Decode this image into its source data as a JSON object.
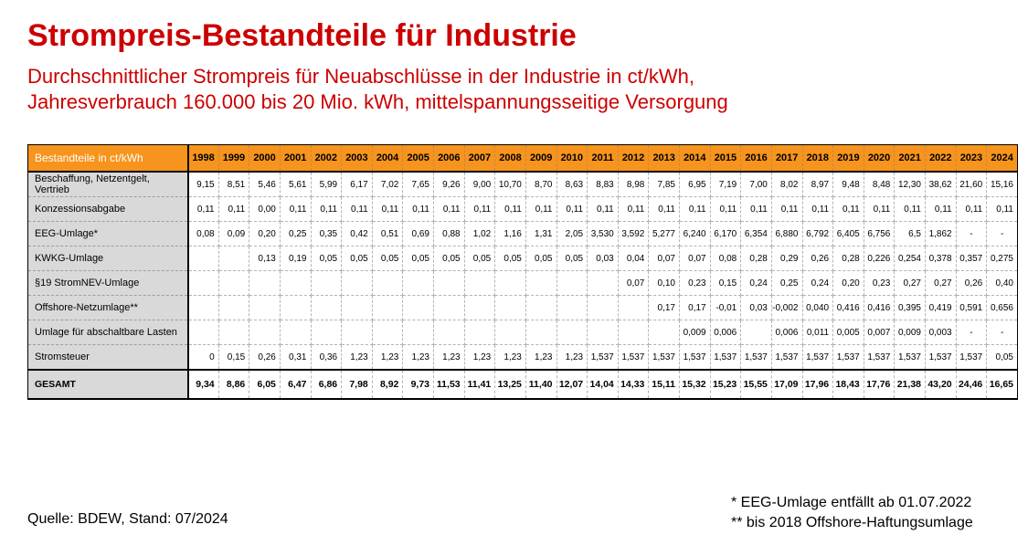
{
  "title": "Strompreis-Bestandteile für Industrie",
  "subtitle": {
    "line1": "Durchschnittlicher Strompreis für Neuabschlüsse in der Industrie in ct/kWh,",
    "line2": "Jahresverbrauch 160.000 bis 20 Mio. kWh, mittelspannungsseitige Versorgung"
  },
  "colors": {
    "accent_red": "#CC0000",
    "header_orange": "#F7941D",
    "label_gray": "#D9D9D9"
  },
  "chart_data": {
    "type": "table",
    "unit": "ct/kWh",
    "header_label": "Bestandteile in ct/kWh",
    "years": [
      "1998",
      "1999",
      "2000",
      "2001",
      "2002",
      "2003",
      "2004",
      "2005",
      "2006",
      "2007",
      "2008",
      "2009",
      "2010",
      "2011",
      "2012",
      "2013",
      "2014",
      "2015",
      "2016",
      "2017",
      "2018",
      "2019",
      "2020",
      "2021",
      "2022",
      "2023",
      "2024"
    ],
    "rows": [
      {
        "label": "Beschaffung, Netzentgelt, Vertrieb",
        "bold": false,
        "values": [
          "9,15",
          "8,51",
          "5,46",
          "5,61",
          "5,99",
          "6,17",
          "7,02",
          "7,65",
          "9,26",
          "9,00",
          "10,70",
          "8,70",
          "8,63",
          "8,83",
          "8,98",
          "7,85",
          "6,95",
          "7,19",
          "7,00",
          "8,02",
          "8,97",
          "9,48",
          "8,48",
          "12,30",
          "38,62",
          "21,60",
          "15,16"
        ]
      },
      {
        "label": "Konzessionsabgabe",
        "bold": false,
        "values": [
          "0,11",
          "0,11",
          "0,00",
          "0,11",
          "0,11",
          "0,11",
          "0,11",
          "0,11",
          "0,11",
          "0,11",
          "0,11",
          "0,11",
          "0,11",
          "0,11",
          "0,11",
          "0,11",
          "0,11",
          "0,11",
          "0,11",
          "0,11",
          "0,11",
          "0,11",
          "0,11",
          "0,11",
          "0,11",
          "0,11",
          "0,11"
        ]
      },
      {
        "label": "EEG-Umlage*",
        "bold": false,
        "values": [
          "0,08",
          "0,09",
          "0,20",
          "0,25",
          "0,35",
          "0,42",
          "0,51",
          "0,69",
          "0,88",
          "1,02",
          "1,16",
          "1,31",
          "2,05",
          "3,530",
          "3,592",
          "5,277",
          "6,240",
          "6,170",
          "6,354",
          "6,880",
          "6,792",
          "6,405",
          "6,756",
          "6,5",
          "1,862",
          "-",
          "-"
        ]
      },
      {
        "label": "KWKG-Umlage",
        "bold": false,
        "values": [
          "",
          "",
          "0,13",
          "0,19",
          "0,05",
          "0,05",
          "0,05",
          "0,05",
          "0,05",
          "0,05",
          "0,05",
          "0,05",
          "0,05",
          "0,03",
          "0,04",
          "0,07",
          "0,07",
          "0,08",
          "0,28",
          "0,29",
          "0,26",
          "0,28",
          "0,226",
          "0,254",
          "0,378",
          "0,357",
          "0,275"
        ]
      },
      {
        "label": "§19 StromNEV-Umlage",
        "bold": false,
        "values": [
          "",
          "",
          "",
          "",
          "",
          "",
          "",
          "",
          "",
          "",
          "",
          "",
          "",
          "",
          "0,07",
          "0,10",
          "0,23",
          "0,15",
          "0,24",
          "0,25",
          "0,24",
          "0,20",
          "0,23",
          "0,27",
          "0,27",
          "0,26",
          "0,40"
        ]
      },
      {
        "label": "Offshore-Netzumlage**",
        "bold": false,
        "values": [
          "",
          "",
          "",
          "",
          "",
          "",
          "",
          "",
          "",
          "",
          "",
          "",
          "",
          "",
          "",
          "0,17",
          "0,17",
          "-0,01",
          "0,03",
          "-0,002",
          "0,040",
          "0,416",
          "0,416",
          "0,395",
          "0,419",
          "0,591",
          "0,656"
        ]
      },
      {
        "label": "Umlage für abschaltbare Lasten",
        "bold": false,
        "values": [
          "",
          "",
          "",
          "",
          "",
          "",
          "",
          "",
          "",
          "",
          "",
          "",
          "",
          "",
          "",
          "",
          "0,009",
          "0,006",
          "",
          "0,006",
          "0,011",
          "0,005",
          "0,007",
          "0,009",
          "0,003",
          "-",
          "-"
        ]
      },
      {
        "label": "Stromsteuer",
        "bold": false,
        "values": [
          "0",
          "0,15",
          "0,26",
          "0,31",
          "0,36",
          "1,23",
          "1,23",
          "1,23",
          "1,23",
          "1,23",
          "1,23",
          "1,23",
          "1,23",
          "1,537",
          "1,537",
          "1,537",
          "1,537",
          "1,537",
          "1,537",
          "1,537",
          "1,537",
          "1,537",
          "1,537",
          "1,537",
          "1,537",
          "1,537",
          "0,05"
        ]
      },
      {
        "label": "GESAMT",
        "bold": true,
        "values": [
          "9,34",
          "8,86",
          "6,05",
          "6,47",
          "6,86",
          "7,98",
          "8,92",
          "9,73",
          "11,53",
          "11,41",
          "13,25",
          "11,40",
          "12,07",
          "14,04",
          "14,33",
          "15,11",
          "15,32",
          "15,23",
          "15,55",
          "17,09",
          "17,96",
          "18,43",
          "17,76",
          "21,38",
          "43,20",
          "24,46",
          "16,65"
        ]
      }
    ]
  },
  "footer": {
    "source": "Quelle: BDEW, Stand: 07/2024",
    "note1": "* EEG-Umlage entfällt ab 01.07.2022",
    "note2": "** bis 2018 Offshore-Haftungsumlage"
  }
}
